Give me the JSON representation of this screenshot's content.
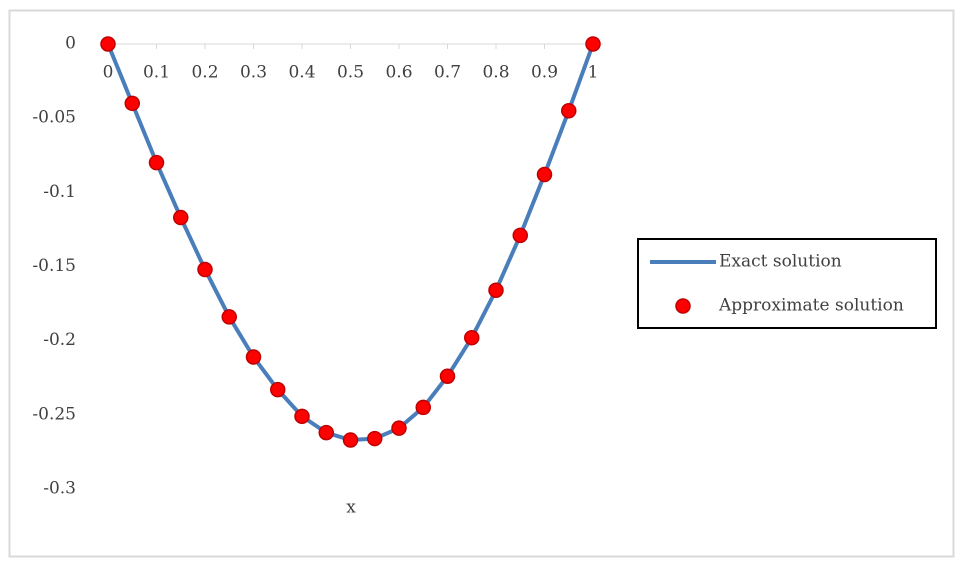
{
  "chart_data": {
    "type": "line",
    "x_label": "x",
    "x": [
      0,
      0.05,
      0.1,
      0.15,
      0.2,
      0.25,
      0.3,
      0.35,
      0.4,
      0.45,
      0.5,
      0.55,
      0.6,
      0.65,
      0.7,
      0.75,
      0.8,
      0.85,
      0.9,
      0.95,
      1
    ],
    "series": [
      {
        "name": "Exact solution",
        "color": "#4a7ebb",
        "style": "line",
        "values": [
          0,
          -0.04,
          -0.08,
          -0.117,
          -0.152,
          -0.184,
          -0.211,
          -0.233,
          -0.251,
          -0.262,
          -0.267,
          -0.266,
          -0.259,
          -0.245,
          -0.224,
          -0.198,
          -0.166,
          -0.129,
          -0.088,
          -0.045,
          0
        ]
      },
      {
        "name": "Approximate solution",
        "color": "#ff0000",
        "style": "marker",
        "values": [
          0,
          -0.04,
          -0.08,
          -0.117,
          -0.152,
          -0.184,
          -0.211,
          -0.233,
          -0.251,
          -0.262,
          -0.267,
          -0.266,
          -0.259,
          -0.245,
          -0.224,
          -0.198,
          -0.166,
          -0.129,
          -0.088,
          -0.045,
          0
        ]
      }
    ],
    "xlim": [
      0,
      1
    ],
    "xticks": [
      0,
      0.1,
      0.2,
      0.3,
      0.4,
      0.5,
      0.6,
      0.7,
      0.8,
      0.9,
      1
    ],
    "ylim": [
      -0.3,
      0
    ],
    "yticks": [
      0,
      -0.05,
      -0.1,
      -0.15,
      -0.2,
      -0.25,
      -0.3
    ],
    "grid": false,
    "legend": "right"
  }
}
